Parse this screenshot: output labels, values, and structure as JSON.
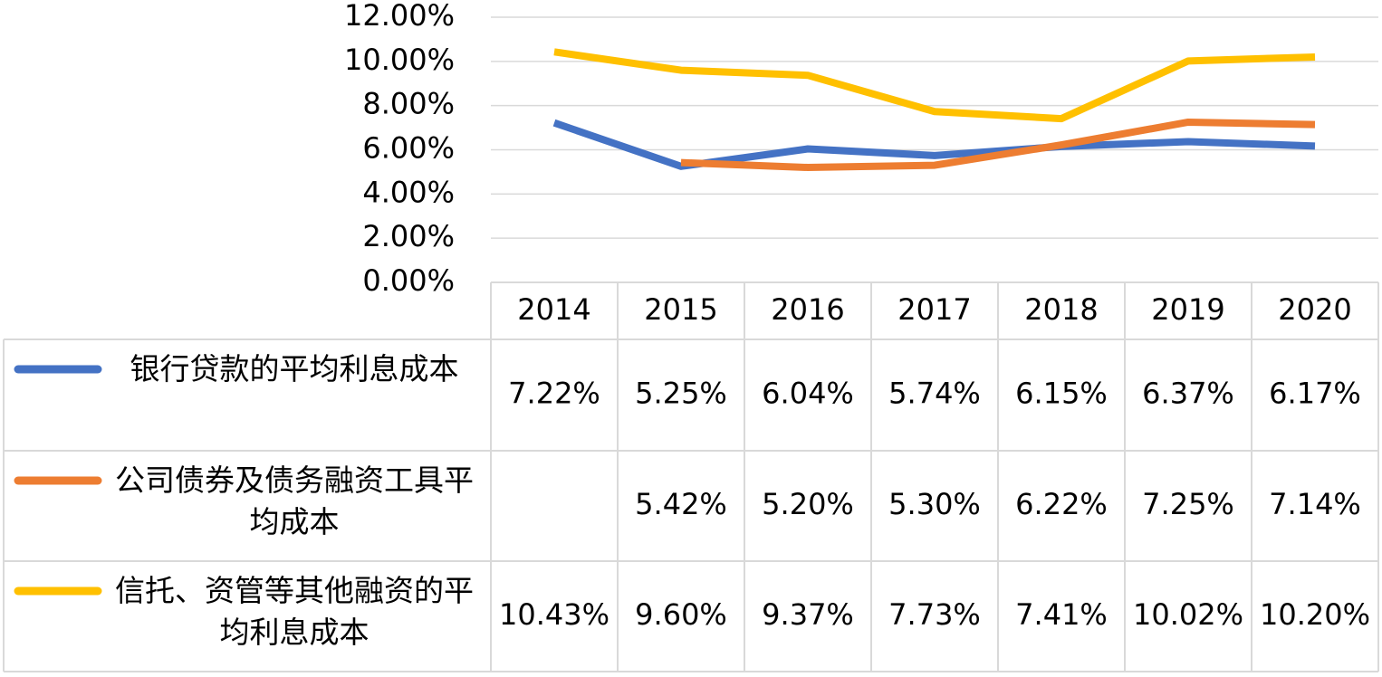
{
  "chart_data": {
    "type": "line",
    "categories": [
      "2014",
      "2015",
      "2016",
      "2017",
      "2018",
      "2019",
      "2020"
    ],
    "series": [
      {
        "name": "银行贷款的平均利息成本",
        "color": "#4472c4",
        "values": [
          7.22,
          5.25,
          6.04,
          5.74,
          6.15,
          6.37,
          6.17
        ],
        "value_labels": [
          "7.22%",
          "5.25%",
          "6.04%",
          "5.74%",
          "6.15%",
          "6.37%",
          "6.17%"
        ]
      },
      {
        "name": "公司债券及债务融资工具平均成本",
        "color": "#ed7d31",
        "values": [
          null,
          5.42,
          5.2,
          5.3,
          6.22,
          7.25,
          7.14
        ],
        "value_labels": [
          null,
          "5.42%",
          "5.20%",
          "5.30%",
          "6.22%",
          "7.25%",
          "7.14%"
        ]
      },
      {
        "name": "信托、资管等其他融资的平均利息成本",
        "color": "#ffc000",
        "values": [
          10.43,
          9.6,
          9.37,
          7.73,
          7.41,
          10.02,
          10.2
        ],
        "value_labels": [
          "10.43%",
          "9.60%",
          "9.37%",
          "7.73%",
          "7.41%",
          "10.02%",
          "10.20%"
        ]
      }
    ],
    "ylim": [
      0,
      12
    ],
    "yticks": [
      {
        "value": 0,
        "label": "0.00%"
      },
      {
        "value": 2,
        "label": "2.00%"
      },
      {
        "value": 4,
        "label": "4.00%"
      },
      {
        "value": 6,
        "label": "6.00%"
      },
      {
        "value": 8,
        "label": "8.00%"
      },
      {
        "value": 10,
        "label": "10.00%"
      },
      {
        "value": 12,
        "label": "12.00%"
      }
    ],
    "grid": true
  }
}
